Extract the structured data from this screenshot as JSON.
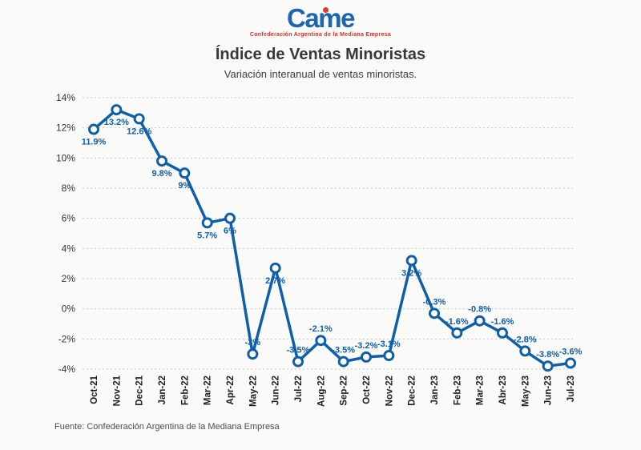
{
  "logo": {
    "name": "Came",
    "tagline": "Confederación Argentina de la Mediana Empresa",
    "color": "#1b66ae",
    "accent": "#e03a2e"
  },
  "header": {
    "title": "Índice de Ventas Minoristas",
    "subtitle": "Variación interanual de ventas minoristas."
  },
  "footer": {
    "source": "Fuente: Confederación Argentina de la Mediana Empresa"
  },
  "chart_data": {
    "type": "line",
    "title": "Índice de Ventas Minoristas",
    "subtitle": "Variación interanual de ventas minoristas.",
    "categories": [
      "Oct-21",
      "Nov-21",
      "Dec-21",
      "Jan-22",
      "Feb-22",
      "Mar-22",
      "Apr-22",
      "May-22",
      "Jun-22",
      "Jul-22",
      "Aug-22",
      "Sep-22",
      "Oct-22",
      "Nov-22",
      "Dec-22",
      "Jan-23",
      "Feb-23",
      "Mar-23",
      "Abr-23",
      "May-23",
      "Jun-23",
      "Jul-23"
    ],
    "values": [
      11.9,
      13.2,
      12.6,
      9.8,
      9,
      5.7,
      6,
      -3,
      2.7,
      -3.5,
      -2.1,
      -3.5,
      -3.2,
      -3.1,
      3.2,
      -0.3,
      -1.6,
      -0.8,
      -1.6,
      -2.8,
      -3.8,
      -3.6
    ],
    "labels": [
      "11.9%",
      "13.2%",
      "12.6%",
      "9.8%",
      "9%",
      "5.7%",
      "6%",
      "-3%",
      "2.7%",
      "-3.5%",
      "-2.1%",
      "-3.5%",
      "-3.2%",
      "-3.1%",
      "3.2%",
      "-0.3%",
      "-1.6%",
      "-0.8%",
      "-1.6%",
      "-2.8%",
      "-3.8%",
      "-3.6%"
    ],
    "label_positions": [
      "below",
      "below",
      "below",
      "below",
      "below",
      "below",
      "below",
      "above",
      "below",
      "above",
      "above",
      "above",
      "above",
      "above",
      "below",
      "above",
      "above",
      "above",
      "above",
      "above",
      "above",
      "above"
    ],
    "ylim": [
      -4,
      14
    ],
    "ytick_step": 2,
    "ytick_labels": [
      "-4%",
      "-2%",
      "0%",
      "2%",
      "4%",
      "6%",
      "8%",
      "10%",
      "12%",
      "14%"
    ],
    "grid": "dotted",
    "legend": "none",
    "line_color": "#0f5fa8",
    "marker_fill": "#ffffff",
    "grid_color": "#c8c8c8",
    "axis_text_color": "#333333",
    "x_label_color": "#1e1e1e"
  }
}
